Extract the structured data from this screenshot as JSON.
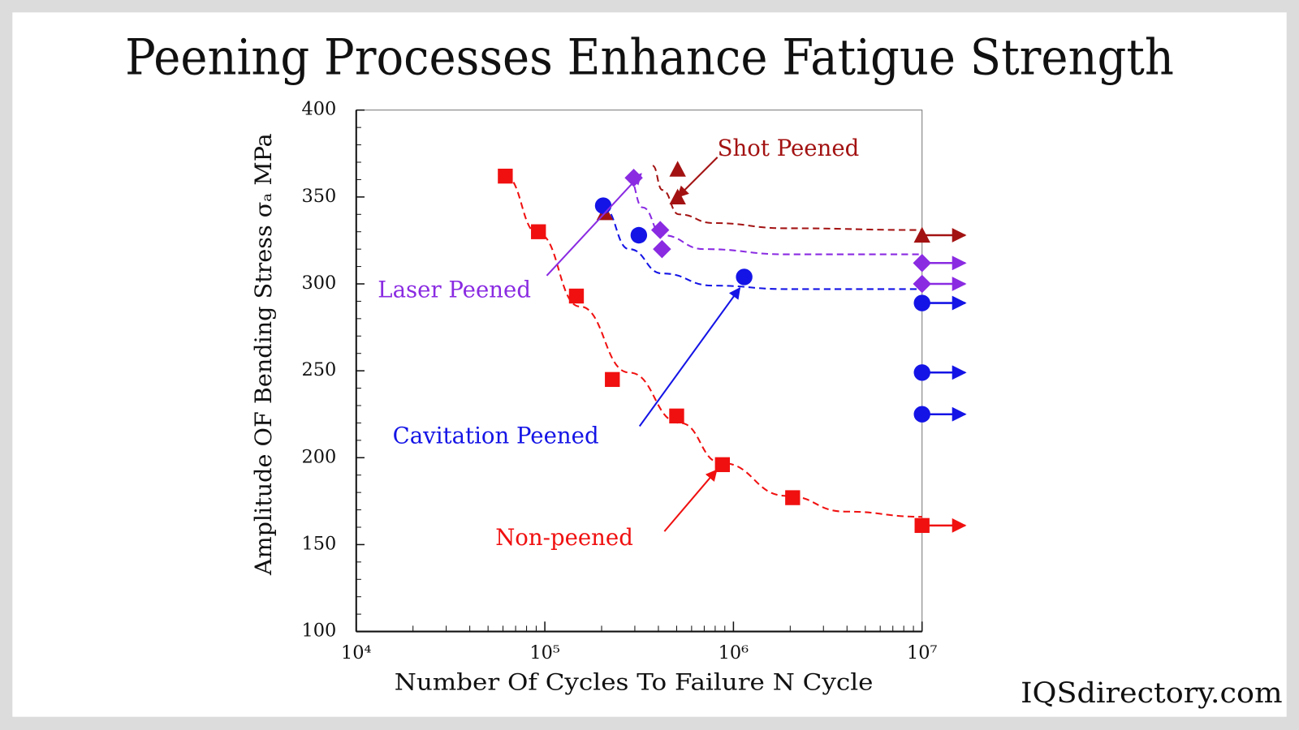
{
  "chart_data": {
    "type": "scatter",
    "title": "Peening Processes Enhance Fatigue Strength",
    "xlabel": "Number Of Cycles To Failure N Cycle",
    "ylabel": "Amplitude OF Bending Stress σₐ MPa",
    "watermark": "IQSdirectory.com",
    "xscale": "log",
    "xlim": [
      10000,
      10000000
    ],
    "xticks": [
      {
        "value": 10000,
        "label": "10⁴"
      },
      {
        "value": 100000,
        "label": "10⁵"
      },
      {
        "value": 1000000,
        "label": "10⁶"
      },
      {
        "value": 10000000,
        "label": "10⁷"
      }
    ],
    "ylim": [
      100,
      400
    ],
    "yticks": [
      100,
      150,
      200,
      250,
      300,
      350,
      400
    ],
    "minor_ticks": true,
    "grid": false,
    "series": [
      {
        "name": "Non-peened",
        "color": "#f01010",
        "marker": "square",
        "x": [
          61700,
          92500,
          147000,
          228000,
          500000,
          874000,
          2060000,
          10000000
        ],
        "values": [
          362,
          330,
          293,
          245,
          224,
          196,
          177,
          161
        ],
        "runout": [
          false,
          false,
          false,
          false,
          false,
          false,
          false,
          true
        ],
        "curve": {
          "x": [
            61700,
            92000,
            153000,
            280000,
            520000,
            860000,
            1920000,
            3900000,
            10000000
          ],
          "y": [
            362,
            329,
            287,
            249,
            220,
            197,
            178,
            169,
            166
          ]
        }
      },
      {
        "name": "Shot Peened",
        "color": "#a31212",
        "marker": "triangle",
        "x": [
          208000,
          506000,
          506000,
          10000000
        ],
        "values": [
          341,
          366,
          350,
          328
        ],
        "runout": [
          false,
          false,
          false,
          true
        ],
        "curve": {
          "x": [
            373000,
            420000,
            514000,
            780000,
            1900000,
            10000000
          ],
          "y": [
            368,
            354,
            340,
            335,
            332,
            331
          ]
        }
      },
      {
        "name": "Laser Peened",
        "color": "#8a2be2",
        "marker": "diamond",
        "x": [
          296000,
          409000,
          418000,
          10000000,
          10000000
        ],
        "values": [
          361,
          331,
          320,
          312,
          300
        ],
        "runout": [
          false,
          false,
          false,
          true,
          true
        ],
        "curve": {
          "x": [
            280000,
            330000,
            420000,
            700000,
            1920000,
            10000000
          ],
          "y": [
            361,
            344,
            328,
            320,
            317,
            317
          ]
        }
      },
      {
        "name": "Cavitation Peened",
        "color": "#1414e6",
        "marker": "circle",
        "x": [
          204000,
          315000,
          1140000,
          10000000,
          10000000,
          10000000
        ],
        "values": [
          345,
          328,
          304,
          289,
          249,
          225
        ],
        "runout": [
          false,
          false,
          false,
          true,
          true,
          true
        ],
        "curve": {
          "x": [
            204000,
            280000,
            420000,
            780000,
            1920000,
            10000000
          ],
          "y": [
            344,
            320,
            306,
            299,
            297,
            297
          ]
        }
      }
    ]
  }
}
